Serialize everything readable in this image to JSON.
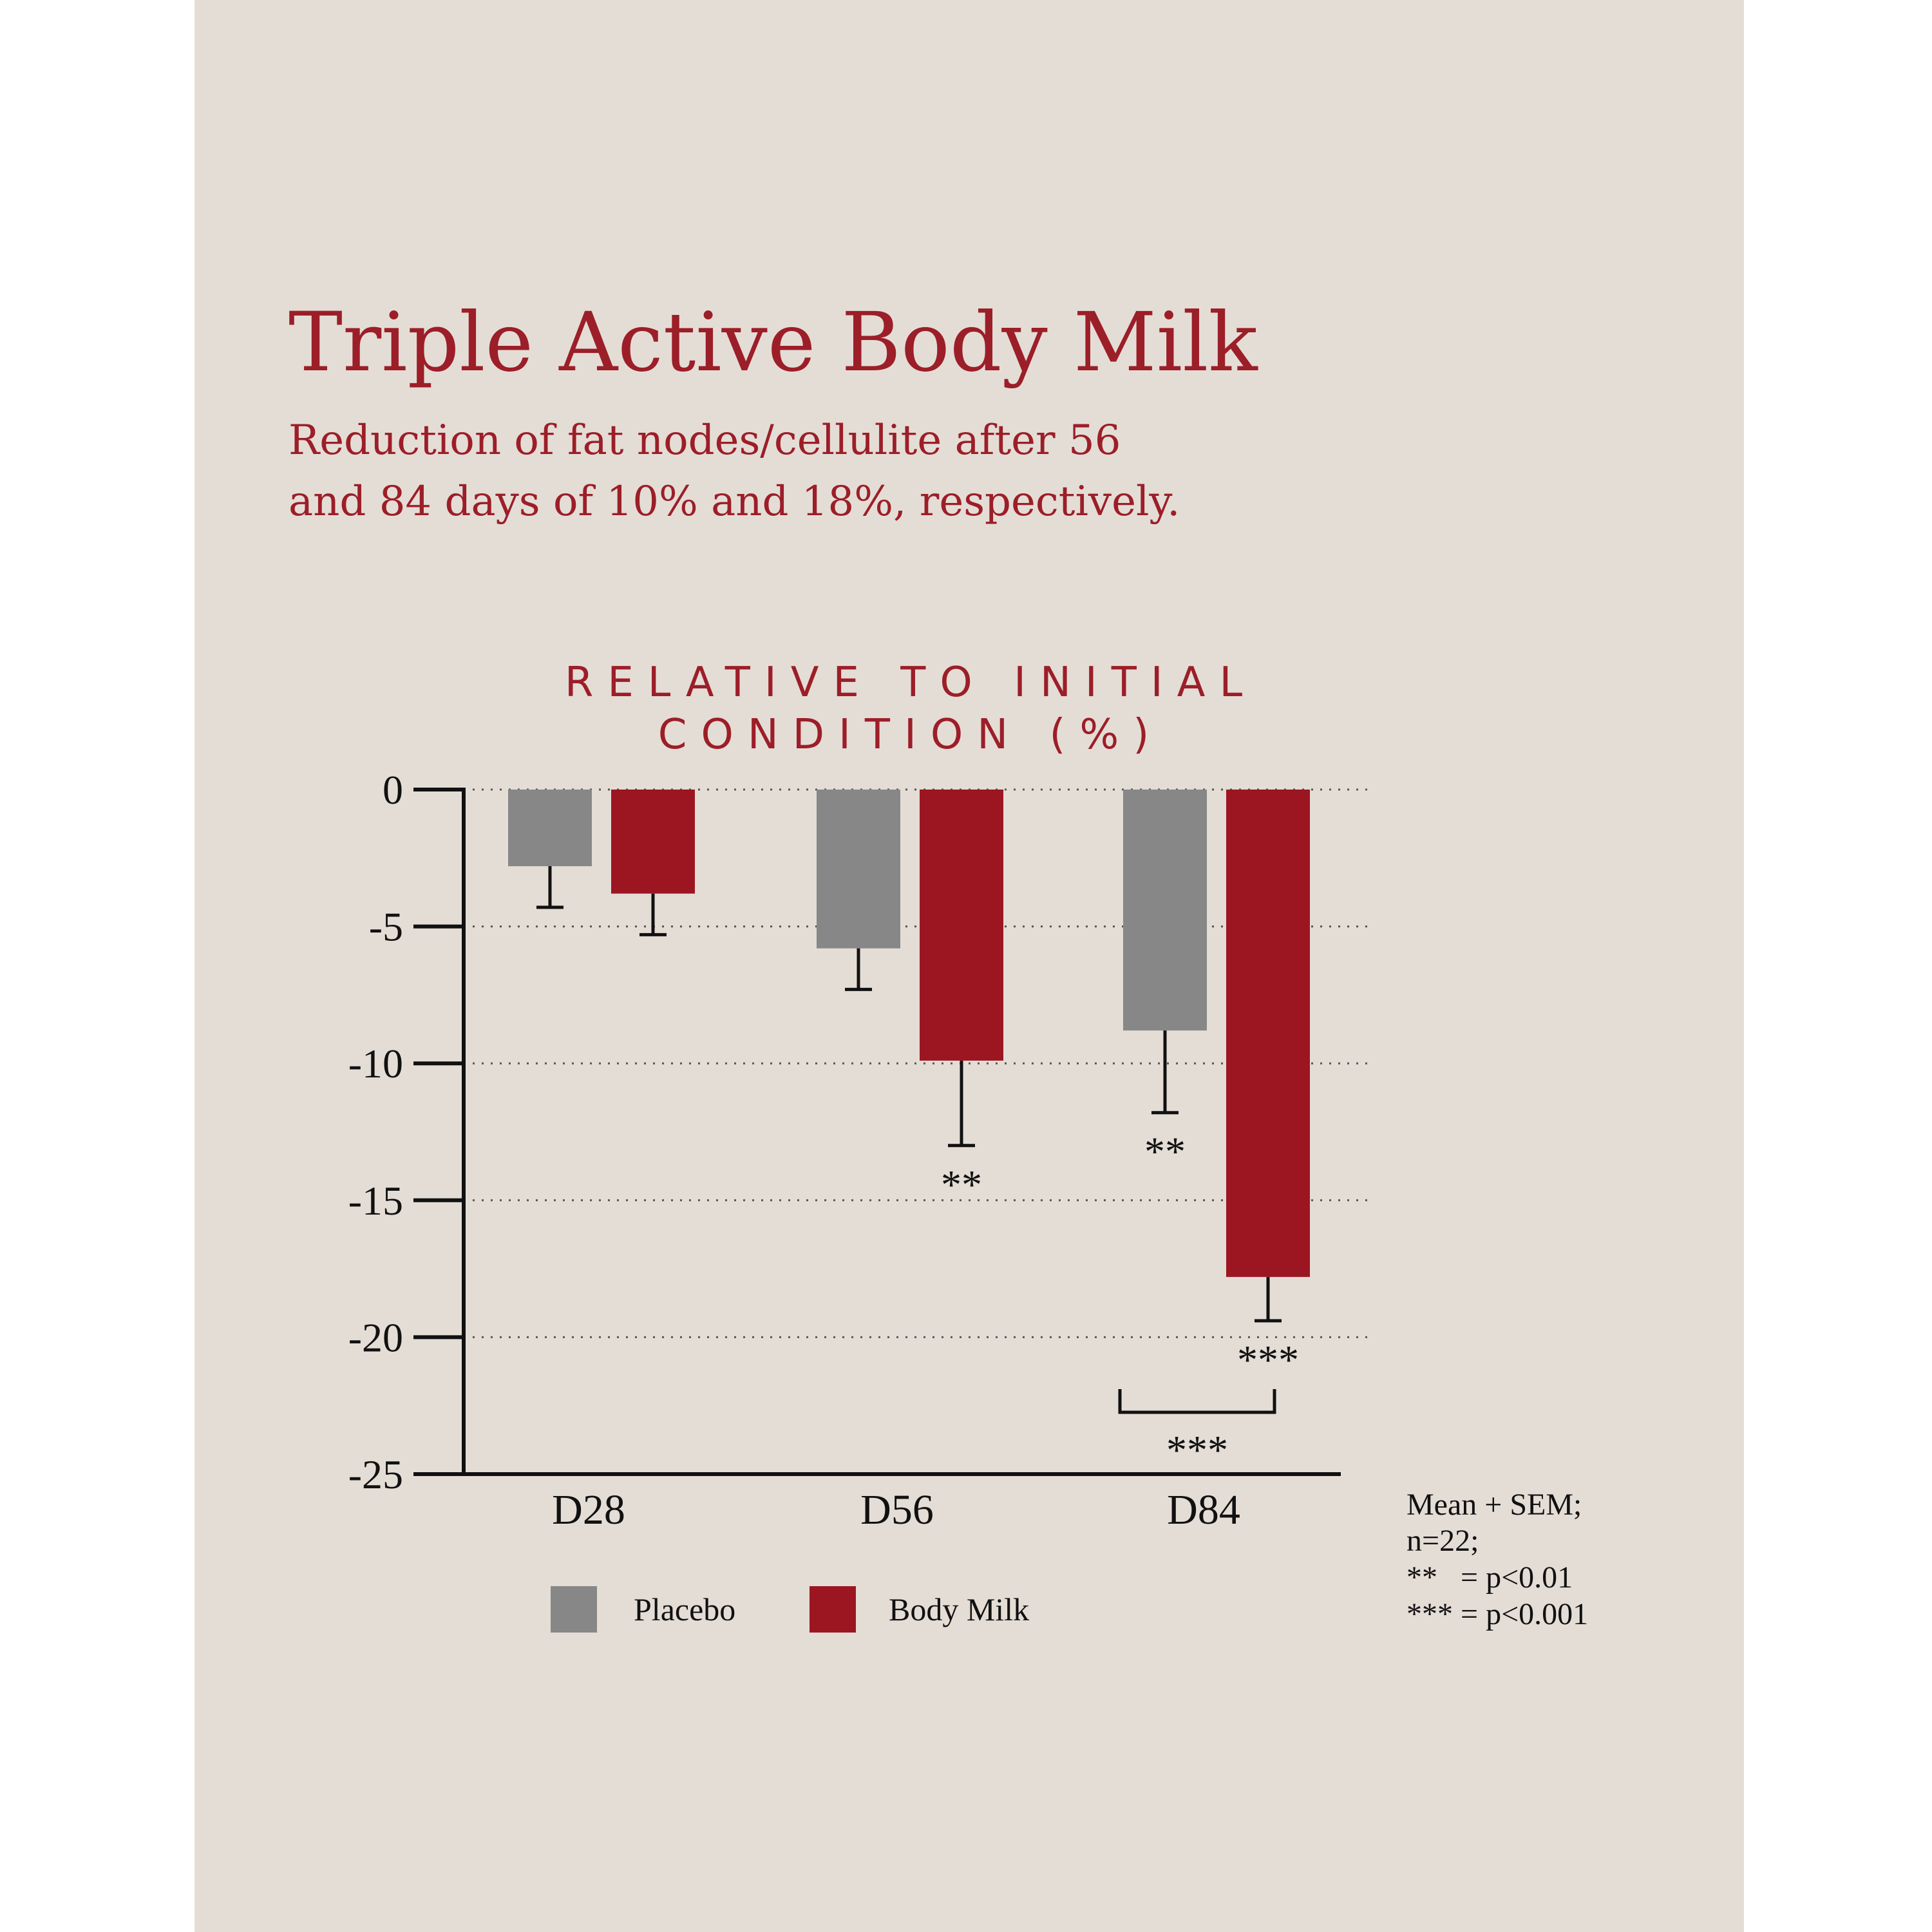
{
  "title": "Triple Active Body Milk",
  "subtitle": [
    "Reduction of fat nodes/cellulite after 56",
    "and 84 days of 10% and 18%, respectively."
  ],
  "colors": {
    "placebo": "#878787",
    "body_milk": "#9c1622",
    "accent_text": "#9c1e28",
    "axis": "#111111",
    "background": "#e4ddd6"
  },
  "chart_data": {
    "type": "bar",
    "ylabel": [
      "RELATIVE TO INITIAL",
      "CONDITION (%)"
    ],
    "categories": [
      "D28",
      "D56",
      "D84"
    ],
    "ylim": [
      -25,
      0
    ],
    "yticks": [
      0,
      -5,
      -10,
      -15,
      -20,
      -25
    ],
    "yticklabels": [
      "0",
      "-5",
      "-10",
      "-15",
      "-20",
      "-25"
    ],
    "grid": "dotted horizontal",
    "series": [
      {
        "name": "Placebo",
        "values": [
          -2.8,
          -5.8,
          -8.8
        ],
        "sem": [
          1.5,
          1.5,
          3.0
        ],
        "significance": [
          "",
          "",
          "**"
        ]
      },
      {
        "name": "Body Milk",
        "values": [
          -3.8,
          -9.9,
          -17.8
        ],
        "sem": [
          1.5,
          3.1,
          1.6
        ],
        "significance": [
          "",
          "**",
          "***"
        ]
      }
    ],
    "comparison": {
      "category": "D84",
      "label": "***"
    },
    "legend": {
      "position": "bottom",
      "items": [
        "Placebo",
        "Body Milk"
      ]
    },
    "notes": [
      "Mean + SEM;",
      "n=22;",
      "**   = p<0.01",
      "*** = p<0.001"
    ]
  }
}
